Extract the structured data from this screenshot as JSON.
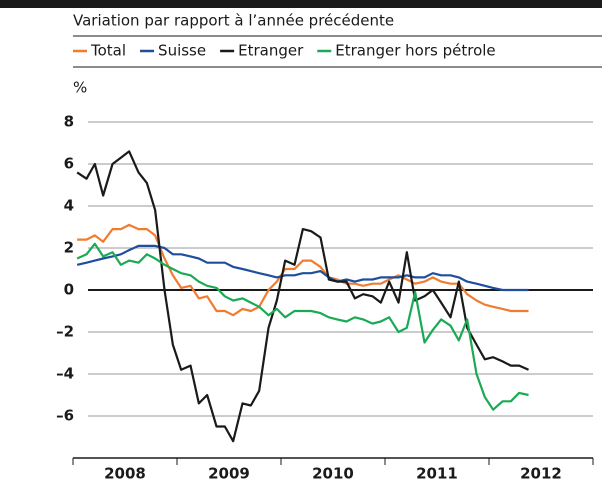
{
  "chart_data": {
    "type": "line",
    "subtitle": "Variation par rapport à l’année précédente",
    "y_unit_label": "%",
    "x": [
      2008.04,
      2008.13,
      2008.21,
      2008.29,
      2008.38,
      2008.46,
      2008.54,
      2008.63,
      2008.71,
      2008.79,
      2008.88,
      2008.96,
      2009.04,
      2009.13,
      2009.21,
      2009.29,
      2009.38,
      2009.46,
      2009.54,
      2009.63,
      2009.71,
      2009.79,
      2009.88,
      2009.96,
      2010.04,
      2010.13,
      2010.21,
      2010.29,
      2010.38,
      2010.46,
      2010.54,
      2010.63,
      2010.71,
      2010.79,
      2010.88,
      2010.96,
      2011.04,
      2011.13,
      2011.21,
      2011.29,
      2011.38,
      2011.46,
      2011.54,
      2011.63,
      2011.71,
      2011.79,
      2011.88,
      2011.96,
      2012.04,
      2012.13,
      2012.21,
      2012.29,
      2012.38
    ],
    "xlim": [
      2008,
      2013
    ],
    "xticks": [
      {
        "value": 2008.5,
        "label": "2008"
      },
      {
        "value": 2009.5,
        "label": "2009"
      },
      {
        "value": 2010.5,
        "label": "2010"
      },
      {
        "value": 2011.5,
        "label": "2011"
      },
      {
        "value": 2012.5,
        "label": "2012"
      }
    ],
    "x_separators": [
      2008,
      2009,
      2010,
      2011,
      2012,
      2013
    ],
    "ylim": [
      -8,
      9
    ],
    "yticks": [
      {
        "value": -6,
        "label": "–6"
      },
      {
        "value": -4,
        "label": "–4"
      },
      {
        "value": -2,
        "label": "–2"
      },
      0,
      2,
      4,
      6,
      8
    ],
    "grid": true,
    "series": [
      {
        "name": "Total",
        "color": "#f07c30",
        "values": [
          2.4,
          2.4,
          2.6,
          2.3,
          2.9,
          2.9,
          3.1,
          2.9,
          2.9,
          2.6,
          1.5,
          0.7,
          0.1,
          0.2,
          -0.4,
          -0.3,
          -1.0,
          -1.0,
          -1.2,
          -0.9,
          -1.0,
          -0.8,
          0.0,
          0.4,
          1.0,
          1.0,
          1.4,
          1.4,
          1.1,
          0.6,
          0.5,
          0.3,
          0.3,
          0.2,
          0.3,
          0.3,
          0.5,
          0.7,
          0.5,
          0.3,
          0.4,
          0.6,
          0.4,
          0.3,
          0.3,
          -0.2,
          -0.5,
          -0.7,
          -0.8,
          -0.9,
          -1.0,
          -1.0,
          -1.0
        ]
      },
      {
        "name": "Suisse",
        "color": "#1f4e9c",
        "values": [
          1.2,
          1.3,
          1.4,
          1.5,
          1.6,
          1.7,
          1.9,
          2.1,
          2.1,
          2.1,
          2.0,
          1.7,
          1.7,
          1.6,
          1.5,
          1.3,
          1.3,
          1.3,
          1.1,
          1.0,
          0.9,
          0.8,
          0.7,
          0.6,
          0.7,
          0.7,
          0.8,
          0.8,
          0.9,
          0.6,
          0.4,
          0.5,
          0.4,
          0.5,
          0.5,
          0.6,
          0.6,
          0.6,
          0.7,
          0.6,
          0.6,
          0.8,
          0.7,
          0.7,
          0.6,
          0.4,
          0.3,
          0.2,
          0.1,
          0.0,
          0.0,
          0.0,
          0.0
        ]
      },
      {
        "name": "Etranger",
        "color": "#1a1a1a",
        "values": [
          5.6,
          5.3,
          6.0,
          4.5,
          6.0,
          6.3,
          6.6,
          5.6,
          5.1,
          3.8,
          0,
          -2.6,
          -3.8,
          -3.6,
          -5.4,
          -5.0,
          -6.5,
          -6.5,
          -7.2,
          -5.4,
          -5.5,
          -4.8,
          -1.8,
          -0.5,
          1.4,
          1.2,
          2.9,
          2.8,
          2.5,
          0.5,
          0.4,
          0.4,
          -0.4,
          -0.2,
          -0.3,
          -0.6,
          0.4,
          -0.6,
          1.8,
          -0.5,
          -0.3,
          0,
          -0.6,
          -1.3,
          0.4,
          -1.8,
          -2.6,
          -3.3,
          -3.2,
          -3.4,
          -3.6,
          -3.6,
          -3.8
        ]
      },
      {
        "name": "Etranger hors pétrole",
        "color": "#1aaa55",
        "values": [
          1.5,
          1.7,
          2.2,
          1.6,
          1.8,
          1.2,
          1.4,
          1.3,
          1.7,
          1.5,
          1.2,
          1.0,
          0.8,
          0.7,
          0.4,
          0.2,
          0.1,
          -0.3,
          -0.5,
          -0.4,
          -0.6,
          -0.8,
          -1.2,
          -0.9,
          -1.3,
          -1.0,
          -1.0,
          -1.0,
          -1.1,
          -1.3,
          -1.4,
          -1.5,
          -1.3,
          -1.4,
          -1.6,
          -1.5,
          -1.3,
          -2.0,
          -1.8,
          -0.1,
          -2.5,
          -1.9,
          -1.4,
          -1.7,
          -2.4,
          -1.4,
          -4.0,
          -5.1,
          -5.7,
          -5.3,
          -5.3,
          -4.9,
          -5.0
        ]
      }
    ]
  }
}
